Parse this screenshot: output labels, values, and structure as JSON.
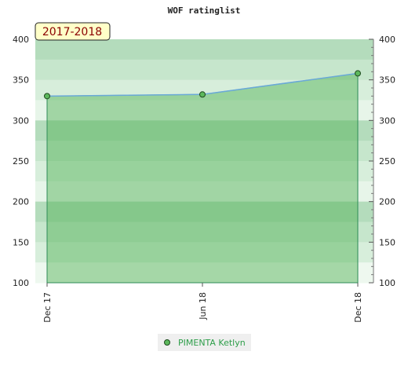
{
  "chart_data": {
    "type": "area",
    "title": "WOF ratinglist",
    "season_label": "2017-2018",
    "x_ticks": [
      "Dec 17",
      "Jun 18",
      "Dec 18"
    ],
    "ylim": [
      100,
      400
    ],
    "y_ticks": [
      100,
      150,
      200,
      250,
      300,
      350,
      400
    ],
    "grid": true,
    "legend_position": "bottom-center",
    "series": [
      {
        "name": "PIMENTA Ketlyn",
        "x": [
          "Dec 17",
          "Jun 18",
          "Dec 18"
        ],
        "values": [
          330,
          332,
          358
        ]
      }
    ],
    "colors": {
      "line": "#6aa9d8",
      "area": "#4caf50",
      "marker_fill": "#5cb85c",
      "marker_edge": "#1e4a1e",
      "season_bg": "#ffffc8",
      "season_text": "#8b0000"
    }
  }
}
